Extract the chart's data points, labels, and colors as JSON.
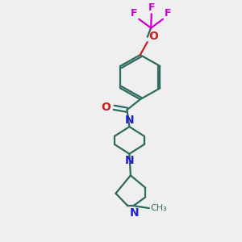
{
  "bg_color": "#efefef",
  "bond_color": "#2d6b5e",
  "N_color": "#2020cc",
  "O_color": "#cc2020",
  "F_color": "#cc00cc",
  "line_width": 1.6,
  "font_size": 9,
  "xlim": [
    0,
    10
  ],
  "ylim": [
    0,
    10
  ]
}
